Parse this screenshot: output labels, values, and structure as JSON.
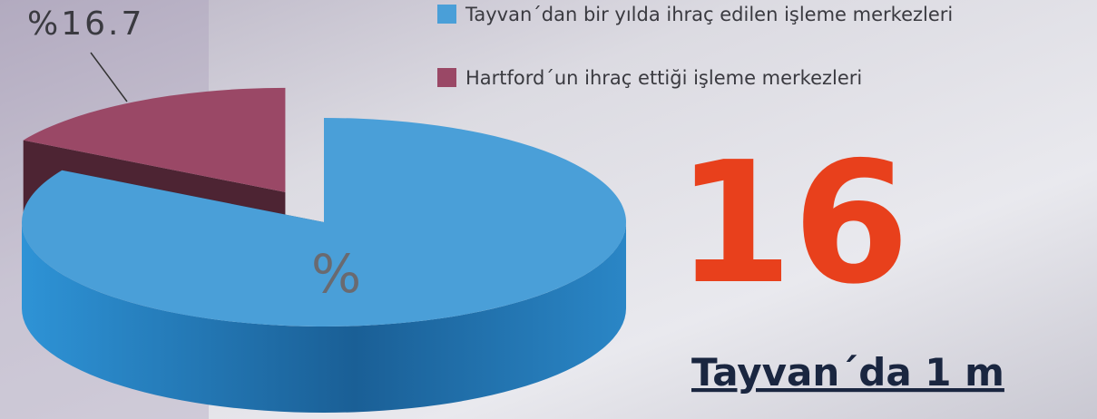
{
  "chart_data": {
    "type": "pie3d",
    "categories": [
      "Tayvan´dan bir yılda ihraç edilen işleme merkezleri",
      "Hartford´un ihraç ettiği işleme merkezleri"
    ],
    "values": [
      83.3,
      16.7
    ],
    "value_labels": [
      null,
      "%16.7"
    ],
    "colors": [
      "#4a9fd8",
      "#9a4866"
    ],
    "annotations": [
      "%",
      "16",
      "Tayvan´da 1 m"
    ]
  }
}
